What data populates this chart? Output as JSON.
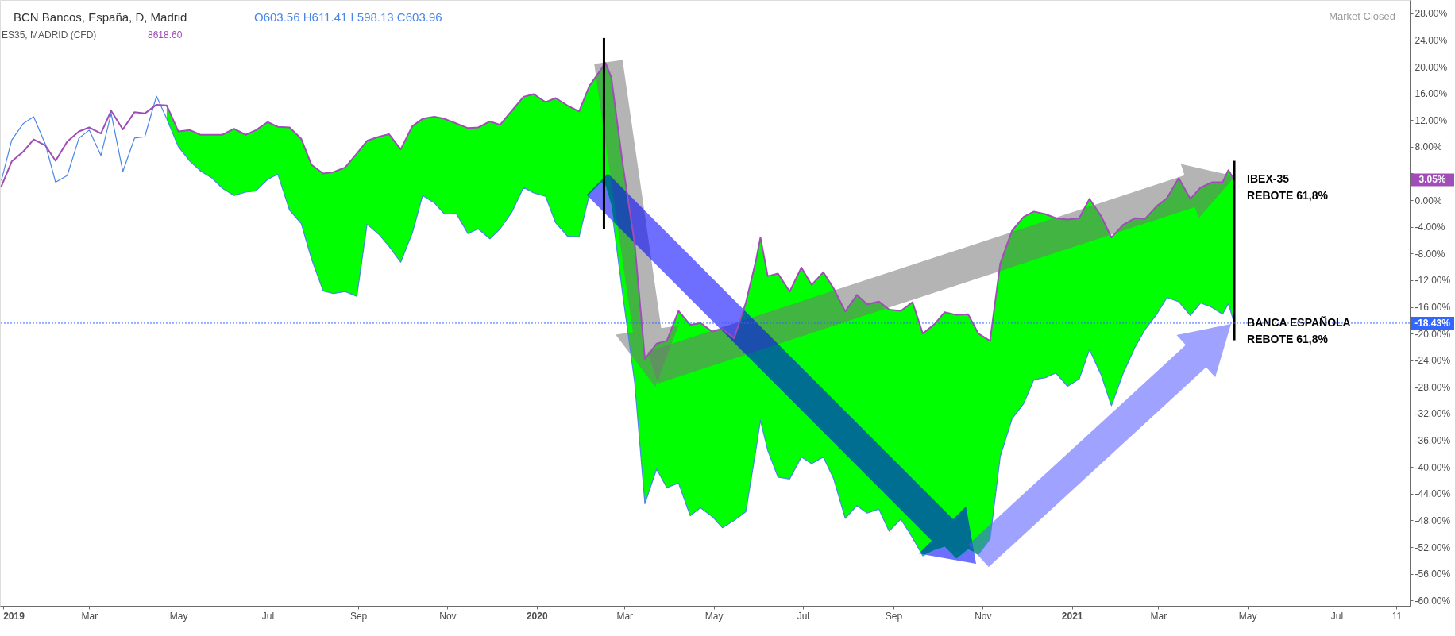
{
  "chart_data": {
    "type": "line",
    "title": "BCN Bancos, España, D, Madrid",
    "subtitle": "ES35, MADRID (CFD)",
    "x": [
      "2018-12-31",
      "2019-01-07",
      "2019-01-15",
      "2019-01-22",
      "2019-01-30",
      "2019-02-06",
      "2019-02-14",
      "2019-02-22",
      "2019-03-01",
      "2019-03-09",
      "2019-03-16",
      "2019-03-24",
      "2019-04-01",
      "2019-04-08",
      "2019-04-16",
      "2019-04-23",
      "2019-05-01",
      "2019-05-09",
      "2019-05-16",
      "2019-05-24",
      "2019-05-31",
      "2019-06-08",
      "2019-06-16",
      "2019-06-23",
      "2019-07-01",
      "2019-07-08",
      "2019-07-16",
      "2019-07-24",
      "2019-07-31",
      "2019-08-08",
      "2019-08-15",
      "2019-08-23",
      "2019-08-31",
      "2019-09-07",
      "2019-09-15",
      "2019-09-22",
      "2019-09-30",
      "2019-10-08",
      "2019-10-15",
      "2019-10-23",
      "2019-10-30",
      "2019-11-07",
      "2019-11-15",
      "2019-11-22",
      "2019-11-30",
      "2019-12-07",
      "2019-12-15",
      "2019-12-23",
      "2019-12-30",
      "2020-01-07",
      "2020-01-14",
      "2020-01-22",
      "2020-01-30",
      "2020-02-06",
      "2020-02-14",
      "2020-02-17",
      "2020-02-21",
      "2020-02-29",
      "2020-03-08",
      "2020-03-15",
      "2020-03-23",
      "2020-03-30",
      "2020-04-07",
      "2020-04-15",
      "2020-04-22",
      "2020-04-30",
      "2020-05-07",
      "2020-05-15",
      "2020-05-23",
      "2020-05-30",
      "2020-06-02",
      "2020-06-07",
      "2020-06-14",
      "2020-06-22",
      "2020-06-30",
      "2020-07-07",
      "2020-07-15",
      "2020-07-22",
      "2020-07-30",
      "2020-08-07",
      "2020-08-14",
      "2020-08-22",
      "2020-08-29",
      "2020-09-06",
      "2020-09-14",
      "2020-09-21",
      "2020-09-29",
      "2020-10-06",
      "2020-10-14",
      "2020-10-22",
      "2020-10-29",
      "2020-11-06",
      "2020-11-13",
      "2020-11-21",
      "2020-11-29",
      "2020-12-06",
      "2020-12-14",
      "2020-12-21",
      "2020-12-29",
      "2021-01-06",
      "2021-01-13",
      "2021-01-21",
      "2021-01-28",
      "2021-02-05",
      "2021-02-13",
      "2021-02-20",
      "2021-02-28",
      "2021-03-07",
      "2021-03-15",
      "2021-03-23",
      "2021-03-30",
      "2021-04-07",
      "2021-04-14",
      "2021-04-18",
      "2021-04-22"
    ],
    "series": [
      {
        "color": "#4a86e8",
        "values": [
          3.0,
          9.0,
          11.5,
          12.5,
          8.4,
          2.7,
          3.7,
          9.3,
          10.5,
          6.7,
          13.0,
          4.3,
          9.3,
          9.5,
          15.6,
          12.2,
          8.0,
          5.8,
          4.4,
          3.3,
          1.8,
          0.7,
          1.2,
          1.4,
          3.1,
          3.9,
          -1.5,
          -3.5,
          -8.8,
          -13.6,
          -14.0,
          -13.7,
          -14.4,
          -3.6,
          -5.1,
          -6.9,
          -9.3,
          -4.9,
          0.7,
          -0.4,
          -2.1,
          -2.0,
          -5.0,
          -4.3,
          -5.8,
          -4.3,
          -1.8,
          1.9,
          1.1,
          0.6,
          -3.4,
          -5.4,
          -5.5,
          0.8,
          2.6,
          2.1,
          -0.9,
          -14.4,
          -27.3,
          -45.5,
          -40.3,
          -43.1,
          -42.4,
          -47.3,
          -46.1,
          -47.4,
          -49.1,
          -48.0,
          -46.7,
          -37.3,
          -33.0,
          -37.5,
          -41.5,
          -41.8,
          -38.5,
          -39.5,
          -38.5,
          -41.7,
          -47.7,
          -45.8,
          -46.9,
          -46.3,
          -49.6,
          -47.8,
          -50.6,
          -53.3,
          -52.5,
          -52.0,
          -53.8,
          -52.4,
          -53.1,
          -50.8,
          -38.4,
          -32.8,
          -30.5,
          -26.9,
          -26.6,
          -25.9,
          -27.9,
          -26.8,
          -22.4,
          -26.2,
          -30.8,
          -26.0,
          -22.1,
          -19.4,
          -17.1,
          -14.6,
          -15.2,
          -17.3,
          -15.4,
          -16.1,
          -17.1,
          -15.5,
          -18.43
        ]
      },
      {
        "color": "#a04db8",
        "values": [
          2.1,
          5.8,
          7.3,
          9.1,
          8.2,
          5.9,
          8.8,
          10.3,
          10.9,
          10.0,
          13.4,
          10.6,
          13.2,
          13.0,
          14.3,
          14.2,
          10.3,
          10.5,
          9.8,
          9.8,
          9.8,
          10.7,
          9.8,
          10.5,
          11.7,
          11.0,
          10.9,
          9.2,
          5.3,
          4.0,
          4.2,
          4.9,
          7.0,
          8.9,
          9.5,
          9.9,
          7.6,
          11.1,
          12.2,
          12.5,
          12.2,
          11.5,
          10.8,
          10.9,
          11.8,
          11.3,
          13.4,
          15.5,
          15.9,
          14.7,
          15.3,
          14.2,
          13.3,
          17.1,
          19.6,
          20.6,
          18.4,
          5.1,
          -6.5,
          -23.8,
          -21.5,
          -21.1,
          -16.6,
          -18.7,
          -18.4,
          -19.7,
          -19.3,
          -20.7,
          -15.4,
          -9.0,
          -5.6,
          -11.4,
          -11.0,
          -13.7,
          -10.1,
          -12.7,
          -10.8,
          -13.2,
          -16.7,
          -14.2,
          -15.6,
          -15.2,
          -16.4,
          -16.6,
          -15.3,
          -20.0,
          -18.6,
          -16.8,
          -17.2,
          -17.1,
          -20.0,
          -21.1,
          -9.5,
          -4.6,
          -2.5,
          -1.7,
          -2.1,
          -2.7,
          -2.9,
          -2.7,
          0.2,
          -2.4,
          -5.6,
          -3.7,
          -2.7,
          -2.8,
          -0.9,
          0.3,
          3.3,
          0.2,
          1.9,
          2.7,
          2.7,
          4.5,
          3.05
        ]
      },
      {
        "color": "#00ff00",
        "values": [
          null,
          null,
          null,
          null,
          null,
          null,
          null,
          null,
          null,
          null,
          null,
          null,
          null,
          null,
          null,
          null,
          null,
          null,
          null,
          null,
          null,
          null,
          null,
          null,
          null,
          null,
          null,
          null,
          null,
          null,
          null,
          null,
          null,
          null,
          null,
          null,
          null,
          null,
          null,
          null,
          null,
          null,
          null,
          null,
          null,
          null,
          null,
          null,
          null,
          null,
          null,
          null,
          null,
          null,
          null,
          null,
          null,
          null,
          null,
          null,
          null,
          null,
          null,
          null,
          null,
          null,
          null,
          null,
          null,
          null,
          null,
          null,
          null,
          null,
          null,
          null,
          null,
          null,
          null,
          null,
          null,
          null,
          null,
          null,
          null,
          null,
          null,
          null,
          null,
          null,
          null,
          null,
          null,
          null,
          null,
          null,
          null,
          null,
          null,
          null,
          null,
          null,
          null,
          null,
          null,
          null,
          null,
          null,
          null,
          null,
          null,
          null,
          null,
          null,
          null
        ],
        "upper": [
          null,
          null,
          null,
          null,
          null,
          null,
          null,
          null,
          null,
          null,
          null,
          null,
          null,
          null,
          null,
          14.2,
          10.3,
          10.5,
          9.8,
          9.8,
          9.8,
          10.7,
          9.8,
          10.5,
          11.7,
          11.0,
          10.9,
          9.2,
          5.3,
          4.0,
          4.2,
          4.9,
          7.0,
          8.9,
          9.5,
          9.9,
          7.6,
          11.1,
          12.2,
          12.5,
          12.2,
          11.5,
          10.8,
          10.9,
          11.8,
          11.3,
          13.4,
          15.5,
          15.9,
          14.7,
          15.3,
          14.2,
          13.3,
          17.1,
          19.6,
          20.6,
          18.4,
          5.1,
          -6.5,
          -23.8,
          -21.5,
          -21.1,
          -16.6,
          -18.7,
          -18.4,
          -19.7,
          -19.3,
          -20.7,
          -15.4,
          -9.0,
          -5.6,
          -11.4,
          -11.0,
          -13.7,
          -10.1,
          -12.7,
          -10.8,
          -13.2,
          -16.7,
          -14.2,
          -15.6,
          -15.2,
          -16.4,
          -16.6,
          -15.3,
          -20.0,
          -18.6,
          -16.8,
          -17.2,
          -17.1,
          -20.0,
          -21.1,
          -9.5,
          -4.6,
          -2.5,
          -1.7,
          -2.1,
          -2.7,
          -2.9,
          -2.7,
          0.2,
          -2.4,
          -5.6,
          -3.7,
          -2.7,
          -2.8,
          -0.9,
          0.3,
          3.3,
          0.2,
          1.9,
          2.7,
          2.7,
          4.5,
          3.05
        ],
        "lower": [
          null,
          null,
          null,
          null,
          null,
          null,
          null,
          null,
          null,
          null,
          null,
          null,
          null,
          null,
          null,
          12.2,
          8.0,
          5.8,
          4.4,
          3.3,
          1.8,
          0.7,
          1.2,
          1.4,
          3.1,
          3.9,
          -1.5,
          -3.5,
          -8.8,
          -13.6,
          -14.0,
          -13.7,
          -14.4,
          -3.6,
          -5.1,
          -6.9,
          -9.3,
          -4.9,
          0.7,
          -0.4,
          -2.1,
          -2.0,
          -5.0,
          -4.3,
          -5.8,
          -4.3,
          -1.8,
          1.9,
          1.1,
          0.6,
          -3.4,
          -5.4,
          -5.5,
          0.8,
          2.6,
          2.1,
          -0.9,
          -14.4,
          -27.3,
          -45.5,
          -40.3,
          -43.1,
          -42.4,
          -47.3,
          -46.1,
          -47.4,
          -49.1,
          -48.0,
          -46.7,
          -37.3,
          -33.0,
          -37.5,
          -41.5,
          -41.8,
          -38.5,
          -39.5,
          -38.5,
          -41.7,
          -47.7,
          -45.8,
          -46.9,
          -46.3,
          -49.6,
          -47.8,
          -50.6,
          -53.3,
          -52.5,
          -52.0,
          -53.8,
          -52.4,
          -53.1,
          -50.8,
          -38.4,
          -32.8,
          -30.5,
          -26.9,
          -26.6,
          -25.9,
          -27.9,
          -26.8,
          -22.4,
          -26.2,
          -30.8,
          -26.0,
          -22.1,
          -19.4,
          -17.1,
          -14.6,
          -15.2,
          -17.3,
          -15.4,
          -16.1,
          -17.1,
          -15.5,
          -18.43
        ]
      },
      {
        "type": "line",
        "color": "#000000",
        "x": [
          "2020-02-16",
          "2020-02-16"
        ],
        "values": [
          24.3,
          -4.3
        ]
      },
      {
        "type": "line",
        "color": "#000000",
        "x": [
          "2021-04-22",
          "2021-04-22"
        ],
        "values": [
          5.9,
          -21.0
        ]
      }
    ],
    "xlim": [
      "2018-12-30",
      "2021-08-20"
    ],
    "xticks": [
      {
        "value": "2019-01-01",
        "label": "2019"
      },
      {
        "value": "2019-03-01",
        "label": "Mar"
      },
      {
        "value": "2019-05-01",
        "label": "May"
      },
      {
        "value": "2019-07-01",
        "label": "Jul"
      },
      {
        "value": "2019-09-01",
        "label": "Sep"
      },
      {
        "value": "2019-11-01",
        "label": "Nov"
      },
      {
        "value": "2020-01-01",
        "label": "2020"
      },
      {
        "value": "2020-03-01",
        "label": "Mar"
      },
      {
        "value": "2020-05-01",
        "label": "May"
      },
      {
        "value": "2020-07-01",
        "label": "Jul"
      },
      {
        "value": "2020-09-01",
        "label": "Sep"
      },
      {
        "value": "2020-11-01",
        "label": "Nov"
      },
      {
        "value": "2021-01-01",
        "label": "2021"
      },
      {
        "value": "2021-03-01",
        "label": "Mar"
      },
      {
        "value": "2021-05-01",
        "label": "May"
      },
      {
        "value": "2021-07-01",
        "label": "Jul"
      },
      {
        "value": "2021-08-11",
        "label": "11"
      }
    ],
    "ylim": [
      -60.8,
      30.0
    ],
    "yticks": [
      {
        "value": 28,
        "label": "28.00%"
      },
      {
        "value": 24,
        "label": "24.00%"
      },
      {
        "value": 20,
        "label": "20.00%"
      },
      {
        "value": 16,
        "label": "16.00%"
      },
      {
        "value": 12,
        "label": "12.00%"
      },
      {
        "value": 8,
        "label": "8.00%"
      },
      {
        "value": 4,
        "label": null
      },
      {
        "value": 0,
        "label": "0.00%"
      },
      {
        "value": -4,
        "label": "-4.00%"
      },
      {
        "value": -8,
        "label": "-8.00%"
      },
      {
        "value": -12,
        "label": "-12.00%"
      },
      {
        "value": -16,
        "label": "-16.00%"
      },
      {
        "value": -20,
        "label": "-20.00%"
      },
      {
        "value": -24,
        "label": "-24.00%"
      },
      {
        "value": -28,
        "label": "-28.00%"
      },
      {
        "value": -32,
        "label": "-32.00%"
      },
      {
        "value": -36,
        "label": "-36.00%"
      },
      {
        "value": -40,
        "label": "-40.00%"
      },
      {
        "value": -44,
        "label": "-44.00%"
      },
      {
        "value": -48,
        "label": "-48.00%"
      },
      {
        "value": -52,
        "label": "-52.00%"
      },
      {
        "value": -56,
        "label": "-56.00%"
      },
      {
        "value": -60,
        "label": "-60.00%"
      }
    ],
    "ref_lines": [
      {
        "axis": "y",
        "value": -18.43,
        "label": "-18.43%",
        "color": "#3366ff",
        "line_style": "dotted"
      }
    ],
    "annotations": [
      "O603.56 H611.41 L598.13 C603.96",
      "8618.60",
      "Market Closed",
      "3.05%",
      {
        "text": "IBEX-35\nREBOTE 61,8%",
        "x": "2021-04-22",
        "y": 3.05
      },
      {
        "text": "BANCA ESPAÑOLA\nREBOTE 61,8%",
        "x": "2021-04-22",
        "y": -18.43
      }
    ]
  }
}
